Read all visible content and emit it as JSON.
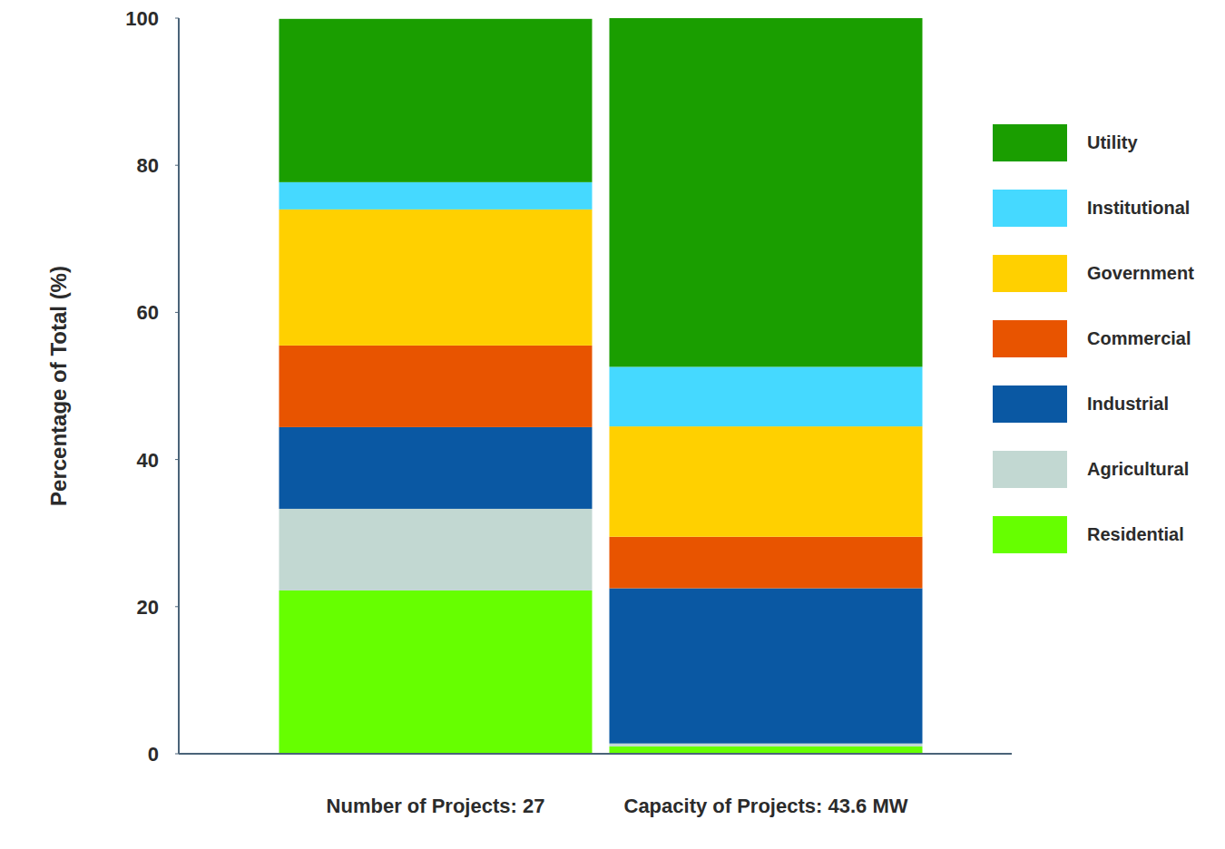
{
  "chart_data": {
    "type": "bar",
    "stacked": true,
    "legend": "right",
    "y_label": "Percentage of Total (%)",
    "categories": [
      "Number of Projects: 27",
      "Capacity of Projects: 43.6 MW"
    ],
    "series": [
      {
        "name": "Residential",
        "color": "#66ff00",
        "values": [
          22.2,
          1.0
        ]
      },
      {
        "name": "Agricultural",
        "color": "#c2d8d2",
        "values": [
          11.1,
          0.4
        ]
      },
      {
        "name": "Industrial",
        "color": "#0a58a3",
        "values": [
          11.1,
          21.1
        ]
      },
      {
        "name": "Commercial",
        "color": "#e85400",
        "values": [
          11.1,
          7.0
        ]
      },
      {
        "name": "Government",
        "color": "#ffd000",
        "values": [
          18.5,
          15.0
        ]
      },
      {
        "name": "Institutional",
        "color": "#45d9ff",
        "values": [
          3.7,
          8.1
        ]
      },
      {
        "name": "Utility",
        "color": "#1a9e00",
        "values": [
          22.2,
          47.4
        ]
      }
    ],
    "ylim": [
      0,
      100
    ],
    "yticks": [
      0,
      20,
      40,
      60,
      80,
      100
    ]
  }
}
